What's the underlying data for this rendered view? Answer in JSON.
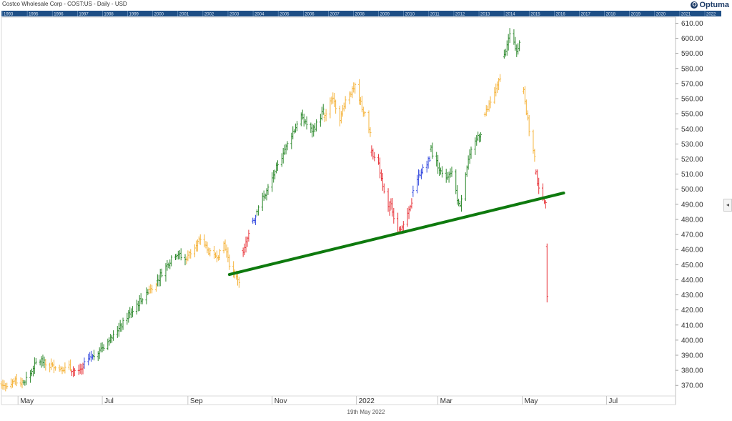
{
  "header": {
    "title": "Costco Wholesale Corp - COST:US - Daily - USD",
    "brand": "Optuma"
  },
  "footer": {
    "date_label": "19th May 2022"
  },
  "timeline": {
    "years": [
      "1993",
      "1995",
      "1996",
      "1997",
      "1998",
      "1999",
      "2000",
      "2001",
      "2002",
      "2003",
      "2004",
      "2005",
      "2006",
      "2007",
      "2008",
      "2009",
      "2010",
      "2011",
      "2012",
      "2013",
      "2014",
      "2015",
      "2016",
      "2017",
      "2018",
      "2019",
      "2020",
      "2021",
      "2022"
    ]
  },
  "side_button": {
    "glyph": "◂"
  },
  "chart_data": {
    "type": "ohlc-bar",
    "title": "Costco Wholesale Corp - COST:US - Daily - USD",
    "x_axis": {
      "labels": [
        "May",
        "Jul",
        "Sep",
        "Nov",
        "2022",
        "Mar",
        "May",
        "Jul"
      ],
      "range": [
        "2021-04-19",
        "2022-08-20"
      ]
    },
    "y_axis": {
      "range": [
        363,
        614
      ],
      "ticks": [
        370,
        380,
        390,
        400,
        410,
        420,
        430,
        440,
        450,
        460,
        470,
        480,
        490,
        500,
        510,
        520,
        530,
        540,
        550,
        560,
        570,
        580,
        590,
        600,
        610
      ],
      "tick_format": "0.00"
    },
    "bar_colors": {
      "green": "#2f8a2f",
      "orange": "#f5b43d",
      "red": "#e8343a",
      "blue": "#3a4fe0"
    },
    "trendline": {
      "color": "#0e7a0e",
      "from": [
        "2021-10-01",
        443.5
      ],
      "to": [
        "2022-05-31",
        497.5
      ]
    },
    "series": [
      {
        "from": "2021-04-19",
        "to": "2021-05-04",
        "color": "orange",
        "path": [
          [
            0,
            371
          ],
          [
            1,
            370
          ],
          [
            2,
            373
          ],
          [
            3,
            372
          ]
        ]
      },
      {
        "from": "2021-05-05",
        "to": "2021-05-20",
        "color": "green",
        "path": [
          [
            0,
            372
          ],
          [
            1,
            378
          ],
          [
            2,
            386
          ],
          [
            3,
            387
          ]
        ]
      },
      {
        "from": "2021-05-21",
        "to": "2021-06-08",
        "color": "orange",
        "path": [
          [
            0,
            384
          ],
          [
            1,
            383
          ],
          [
            2,
            381
          ],
          [
            3,
            382
          ]
        ]
      },
      {
        "from": "2021-06-09",
        "to": "2021-06-17",
        "color": "red",
        "path": [
          [
            0,
            381
          ],
          [
            1,
            379
          ],
          [
            2,
            381
          ]
        ]
      },
      {
        "from": "2021-06-18",
        "to": "2021-06-24",
        "color": "blue",
        "path": [
          [
            0,
            385
          ],
          [
            1,
            390
          ]
        ]
      },
      {
        "from": "2021-06-25",
        "to": "2021-08-03",
        "color": "green",
        "path": [
          [
            0,
            390
          ],
          [
            1,
            399
          ],
          [
            2,
            410
          ],
          [
            3,
            422
          ],
          [
            4,
            432
          ]
        ]
      },
      {
        "from": "2021-08-04",
        "to": "2021-08-09",
        "color": "orange",
        "path": [
          [
            0,
            434
          ],
          [
            1,
            438
          ]
        ]
      },
      {
        "from": "2021-08-10",
        "to": "2021-08-30",
        "color": "green",
        "path": [
          [
            0,
            440
          ],
          [
            1,
            450
          ],
          [
            2,
            458
          ],
          [
            3,
            453
          ]
        ]
      },
      {
        "from": "2021-08-31",
        "to": "2021-10-08",
        "color": "orange",
        "path": [
          [
            0,
            455
          ],
          [
            1,
            462
          ],
          [
            2,
            467
          ],
          [
            3,
            458
          ],
          [
            4,
            455
          ],
          [
            5,
            464
          ],
          [
            6,
            446
          ],
          [
            7,
            440
          ]
        ]
      },
      {
        "from": "2021-10-09",
        "to": "2021-10-15",
        "color": "red",
        "path": [
          [
            0,
            451
          ],
          [
            1,
            470
          ]
        ]
      },
      {
        "from": "2021-10-16",
        "to": "2021-10-20",
        "color": "blue",
        "path": [
          [
            0,
            478
          ],
          [
            1,
            482
          ]
        ]
      },
      {
        "from": "2021-10-21",
        "to": "2021-12-08",
        "color": "green",
        "path": [
          [
            0,
            487
          ],
          [
            1,
            500
          ],
          [
            2,
            518
          ],
          [
            3,
            535
          ],
          [
            4,
            548
          ],
          [
            5,
            538
          ],
          [
            6,
            552
          ]
        ]
      },
      {
        "from": "2021-12-09",
        "to": "2022-01-11",
        "color": "orange",
        "path": [
          [
            0,
            548
          ],
          [
            1,
            562
          ],
          [
            2,
            547
          ],
          [
            3,
            563
          ],
          [
            4,
            567
          ],
          [
            5,
            553
          ],
          [
            6,
            537
          ]
        ]
      },
      {
        "from": "2022-01-12",
        "to": "2022-01-25",
        "color": "red",
        "path": [
          [
            0,
            524
          ],
          [
            1,
            518
          ],
          [
            2,
            500
          ],
          [
            3,
            485
          ]
        ]
      },
      {
        "from": "2022-01-26",
        "to": "2022-02-10",
        "color": "red",
        "path": [
          [
            0,
            490
          ],
          [
            1,
            472
          ],
          [
            2,
            478
          ],
          [
            3,
            490
          ]
        ]
      },
      {
        "from": "2022-02-11",
        "to": "2022-02-23",
        "color": "blue",
        "path": [
          [
            0,
            500
          ],
          [
            1,
            512
          ],
          [
            2,
            520
          ]
        ]
      },
      {
        "from": "2022-02-24",
        "to": "2022-04-01",
        "color": "green",
        "path": [
          [
            0,
            526
          ],
          [
            1,
            515
          ],
          [
            2,
            507
          ],
          [
            3,
            512
          ],
          [
            4,
            487
          ],
          [
            5,
            515
          ],
          [
            6,
            530
          ],
          [
            7,
            538
          ]
        ]
      },
      {
        "from": "2022-04-02",
        "to": "2022-04-17",
        "color": "orange",
        "path": [
          [
            0,
            545
          ],
          [
            1,
            555
          ],
          [
            2,
            566
          ],
          [
            3,
            578
          ]
        ]
      },
      {
        "from": "2022-04-18",
        "to": "2022-05-01",
        "color": "green",
        "path": [
          [
            0,
            588
          ],
          [
            1,
            604
          ],
          [
            2,
            592
          ],
          [
            3,
            600
          ]
        ]
      },
      {
        "from": "2022-05-02",
        "to": "2022-05-10",
        "color": "orange",
        "path": [
          [
            0,
            565
          ],
          [
            1,
            548
          ],
          [
            2,
            530
          ],
          [
            3,
            522
          ]
        ]
      },
      {
        "from": "2022-05-11",
        "to": "2022-05-18",
        "color": "red",
        "path": [
          [
            0,
            510
          ],
          [
            1,
            499
          ],
          [
            2,
            492
          ],
          [
            3,
            490
          ]
        ]
      },
      {
        "from": "2022-05-19",
        "to": "2022-05-19",
        "color": "red",
        "ohlc": [
          462,
          464,
          425,
          429
        ]
      }
    ]
  }
}
